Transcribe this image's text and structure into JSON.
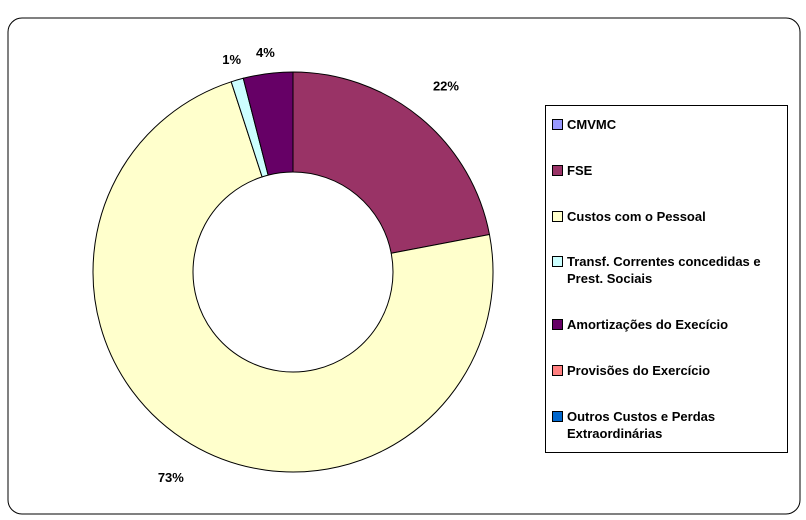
{
  "chart_data": {
    "type": "donut",
    "categories": [
      "CMVMC",
      "FSE",
      "Custos com o Pessoal",
      "Transf. Correntes concedidas e Prest. Sociais",
      "Amortizações do Execício",
      "Provisões do Exercício",
      "Outros Custos e Perdas Extraordinárias"
    ],
    "values": [
      0,
      22,
      73,
      1,
      4,
      0,
      0
    ],
    "value_labels": [
      null,
      "22%",
      "73%",
      "1%",
      "4%",
      null,
      null
    ],
    "colors": [
      "#9999ff",
      "#993366",
      "#ffffcc",
      "#ccffff",
      "#660066",
      "#ff8080",
      "#0066cc"
    ],
    "legend": "right"
  }
}
